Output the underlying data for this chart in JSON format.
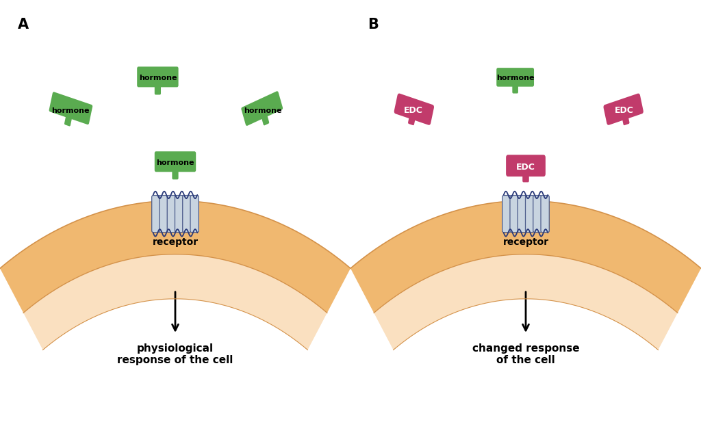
{
  "bg_color": "#ffffff",
  "hormone_color": "#5aab50",
  "edc_color": "#c13b6b",
  "receptor_color": "#c8d4e0",
  "receptor_border": "#4a5a8a",
  "membrane_outer_color": "#f0b870",
  "membrane_inner_color": "#fae0c0",
  "membrane_border_color": "#d4924a",
  "label_A": "A",
  "label_B": "B",
  "text_physiological": "physiological\nresponse of the cell",
  "text_changed": "changed response\nof the cell",
  "text_receptor": "receptor",
  "text_hormone": "hormone",
  "text_edc": "EDC",
  "font_size_label": 15,
  "font_size_response": 11,
  "font_size_receptor": 10,
  "font_size_hormone": 8,
  "font_size_edc": 9,
  "arrow_color": "#000000",
  "loop_color": "#2a3a7a"
}
